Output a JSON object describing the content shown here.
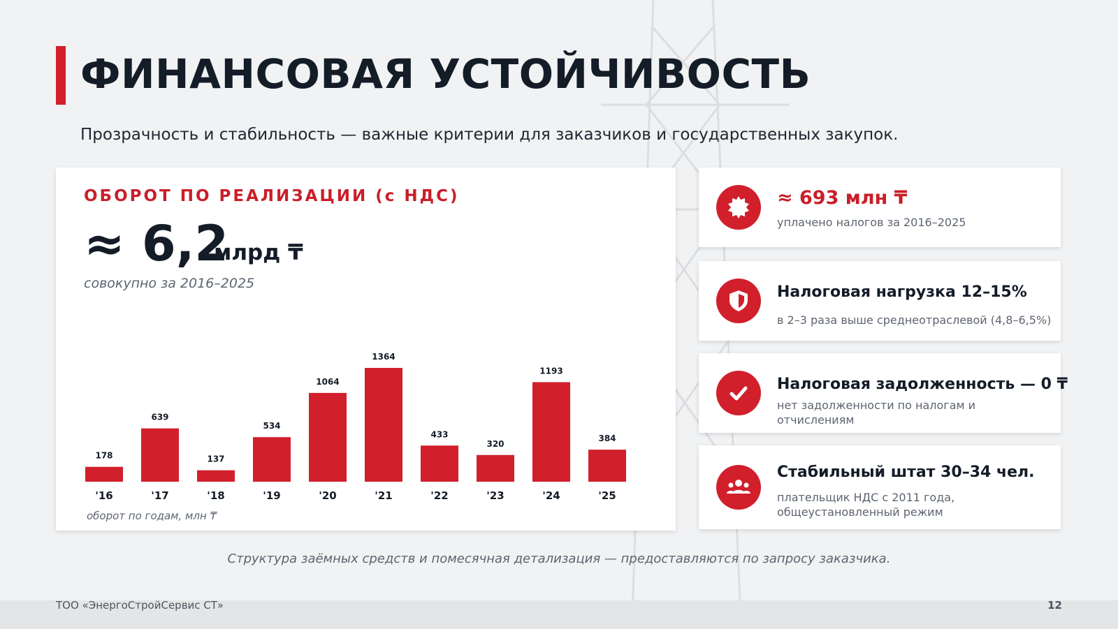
{
  "slide": {
    "title": "ФИНАНСОВАЯ УСТОЙЧИВОСТЬ",
    "subtitle": "Прозрачность и стабильность — важные критерии для заказчиков и государственных закупок.",
    "bottom_note": "Структура заёмных средств и помесячная детализация — предоставляются по запросу заказчика.",
    "footer_company": "ТОО «ЭнергоСтройСервис СТ»",
    "page_number": "12",
    "accent_color": "#d11f2c"
  },
  "main_card": {
    "heading": "ОБОРОТ ПО РЕАЛИЗАЦИИ (с НДС)",
    "value": "≈ 6,2",
    "unit": "млрд ₸",
    "note": "совокупно за 2016–2025"
  },
  "chart_data": {
    "type": "bar",
    "categories": [
      "'16",
      "'17",
      "'18",
      "'19",
      "'20",
      "'21",
      "'22",
      "'23",
      "'24",
      "'25"
    ],
    "values": [
      178,
      639,
      137,
      534,
      1064,
      1364,
      433,
      320,
      1193,
      384
    ],
    "ylabel": "оборот по годам, млн ₸",
    "color": "#d11f2c",
    "data_labels": true,
    "grid": false
  },
  "side_cards": [
    {
      "icon": "badge-icon",
      "title": "≈ 693 млн ₸",
      "text": "уплачено налогов за 2016–2025"
    },
    {
      "icon": "shield-icon",
      "title": "Налоговая нагрузка 12–15%",
      "text": "в 2–3 раза выше среднеотраслевой (4,8–6,5%)"
    },
    {
      "icon": "check-icon",
      "title": "Налоговая задолженность — 0 ₸",
      "text": "нет задолженности по налогам и отчислениям"
    },
    {
      "icon": "users-icon",
      "title": "Стабильный штат 30–34 чел.",
      "text": "плательщик НДС с 2011 года, общеустановленный режим"
    }
  ]
}
